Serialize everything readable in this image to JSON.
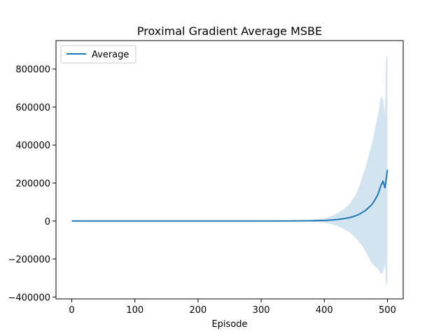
{
  "chart_data": {
    "type": "line",
    "title": "Proximal Gradient Average MSBE",
    "xlabel": "Episode",
    "ylabel": "",
    "xlim": [
      -25,
      525
    ],
    "ylim": [
      -410000,
      950000
    ],
    "xticks": [
      0,
      100,
      200,
      300,
      400,
      500
    ],
    "yticks": [
      -400000,
      -200000,
      0,
      200000,
      400000,
      600000,
      800000
    ],
    "ytick_labels": [
      "−400000",
      "−200000",
      "0",
      "200000",
      "400000",
      "600000",
      "800000"
    ],
    "grid": false,
    "legend_position": "top-left",
    "series": [
      {
        "name": "Average",
        "color": "#1f77b4",
        "band_color": "#1f77b4",
        "x": [
          0,
          100,
          200,
          300,
          350,
          380,
          400,
          410,
          420,
          430,
          440,
          450,
          455,
          460,
          465,
          470,
          475,
          480,
          485,
          490,
          493,
          496,
          498,
          500
        ],
        "y": [
          0,
          0,
          0,
          0,
          500,
          1500,
          3000,
          5000,
          8000,
          12000,
          18000,
          28000,
          35000,
          45000,
          55000,
          70000,
          85000,
          110000,
          140000,
          190000,
          210000,
          175000,
          220000,
          270000
        ],
        "lower": [
          0,
          0,
          0,
          0,
          -500,
          -3000,
          -8000,
          -15000,
          -25000,
          -40000,
          -60000,
          -90000,
          -110000,
          -130000,
          -160000,
          -190000,
          -220000,
          -240000,
          -250000,
          -280000,
          -270000,
          -230000,
          -330000,
          -340000
        ],
        "upper": [
          0,
          0,
          0,
          0,
          1500,
          6000,
          14000,
          25000,
          40000,
          60000,
          90000,
          140000,
          180000,
          230000,
          280000,
          340000,
          400000,
          480000,
          560000,
          660000,
          640000,
          560000,
          880000,
          860000
        ]
      }
    ]
  }
}
